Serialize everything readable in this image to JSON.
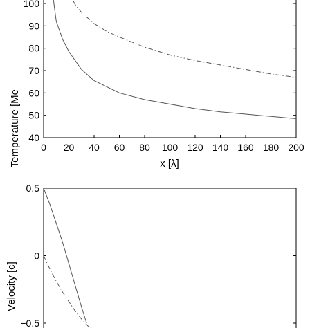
{
  "chart_data": [
    {
      "type": "line",
      "xlabel": "x [λ]",
      "ylabel": "Temperature [Me",
      "xlim": [
        0,
        200
      ],
      "ylim": [
        40,
        105
      ],
      "xticks": [
        0,
        20,
        40,
        60,
        80,
        100,
        120,
        140,
        160,
        180,
        200
      ],
      "yticks": [
        40,
        50,
        60,
        70,
        80,
        90,
        100
      ],
      "grid": false,
      "series": [
        {
          "style": "solid",
          "color": "#555555",
          "x": [
            7,
            10,
            15,
            20,
            30,
            40,
            60,
            80,
            100,
            120,
            140,
            160,
            180,
            200
          ],
          "y": [
            105,
            92,
            84,
            78.5,
            70.5,
            65.5,
            60,
            57,
            55,
            53,
            51.5,
            50.5,
            49.5,
            48.5
          ]
        },
        {
          "style": "dashdot",
          "color": "#555555",
          "x": [
            20,
            25,
            30,
            40,
            50,
            60,
            80,
            100,
            120,
            140,
            160,
            180,
            200
          ],
          "y": [
            105,
            99.5,
            96,
            91,
            87.5,
            85,
            80.5,
            77,
            74.5,
            72.5,
            70.5,
            68.5,
            67
          ]
        }
      ]
    },
    {
      "type": "line",
      "xlabel": "",
      "ylabel": "Velocity [c]",
      "xlim": [
        0,
        200
      ],
      "ylim": [
        -0.55,
        0.5
      ],
      "yticks": [
        0.5,
        0,
        -0.5
      ],
      "ytick_labels": [
        "0.5",
        "0",
        "−0.5"
      ],
      "grid": false,
      "series": [
        {
          "style": "solid",
          "color": "#555555",
          "x": [
            0,
            5,
            10,
            15,
            20,
            25,
            30,
            34
          ],
          "y": [
            0.5,
            0.38,
            0.24,
            0.1,
            -0.06,
            -0.22,
            -0.38,
            -0.5
          ]
        },
        {
          "style": "dashdot",
          "color": "#555555",
          "x": [
            0,
            5,
            10,
            15,
            20,
            25,
            30,
            35,
            40
          ],
          "y": [
            0,
            -0.1,
            -0.19,
            -0.27,
            -0.34,
            -0.41,
            -0.47,
            -0.52,
            -0.55
          ]
        }
      ]
    }
  ]
}
